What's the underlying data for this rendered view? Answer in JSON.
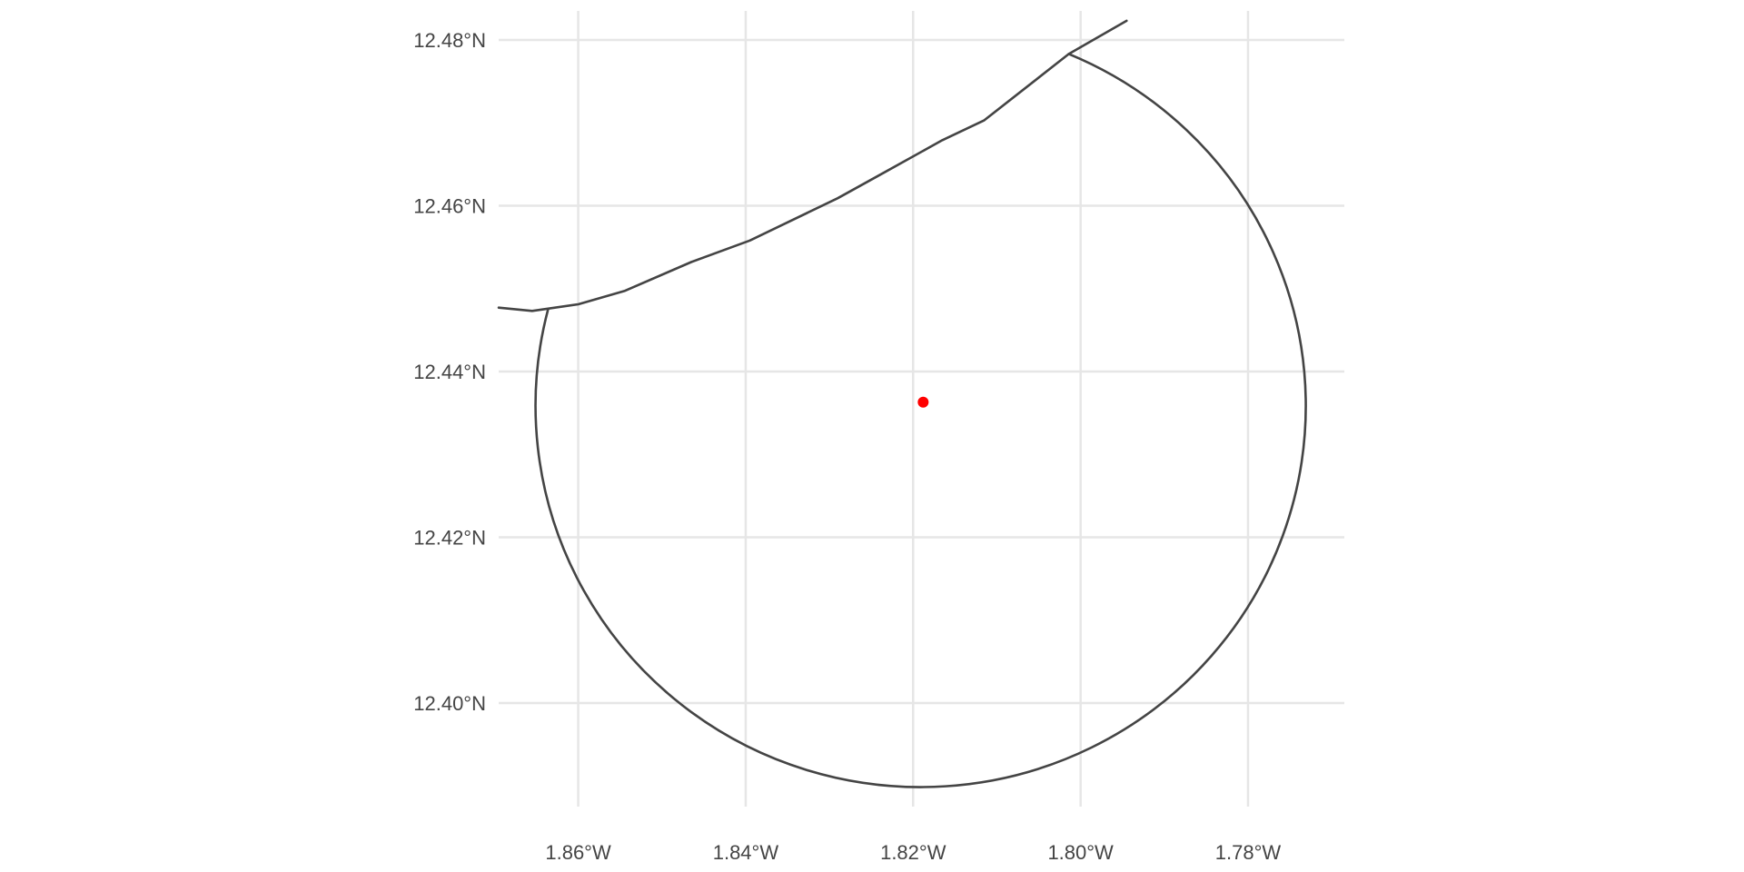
{
  "chart_data": {
    "type": "map",
    "title": "",
    "xlabel": "",
    "ylabel": "",
    "x_axis": {
      "ticks": [
        -1.86,
        -1.84,
        -1.82,
        -1.8,
        -1.78
      ],
      "labels": [
        "1.86°W",
        "1.84°W",
        "1.82°W",
        "1.80°W",
        "1.78°W"
      ],
      "range": [
        -1.8695,
        -1.7685
      ]
    },
    "y_axis": {
      "ticks": [
        12.4,
        12.42,
        12.44,
        12.46,
        12.48
      ],
      "labels": [
        "12.40°N",
        "12.42°N",
        "12.44°N",
        "12.46°N",
        "12.48°N"
      ],
      "range": [
        12.3875,
        12.4835
      ]
    },
    "grid": true,
    "layers": [
      {
        "name": "admin-boundary",
        "kind": "line",
        "color": "#444444",
        "coords": [
          [
            -1.8695,
            12.4477
          ],
          [
            -1.8655,
            12.4473
          ],
          [
            -1.86,
            12.4481
          ],
          [
            -1.8545,
            12.4497
          ],
          [
            -1.8465,
            12.4532
          ],
          [
            -1.8395,
            12.4558
          ],
          [
            -1.829,
            12.4609
          ],
          [
            -1.824,
            12.4637
          ],
          [
            -1.8165,
            12.4679
          ],
          [
            -1.8115,
            12.4703
          ],
          [
            -1.8014,
            12.4783
          ],
          [
            -1.7945,
            12.4823
          ]
        ]
      },
      {
        "name": "buffer-circle",
        "kind": "arc",
        "color": "#444444",
        "center": [
          -1.8188,
          12.4363
        ],
        "radius_deg": 0.046,
        "start_point": [
          -1.8014,
          12.4783
        ],
        "end_point": [
          -1.8636,
          12.4475
        ]
      }
    ],
    "points": [
      {
        "name": "center-point",
        "lon": -1.8188,
        "lat": 12.4363,
        "color": "#ff0000"
      }
    ]
  }
}
